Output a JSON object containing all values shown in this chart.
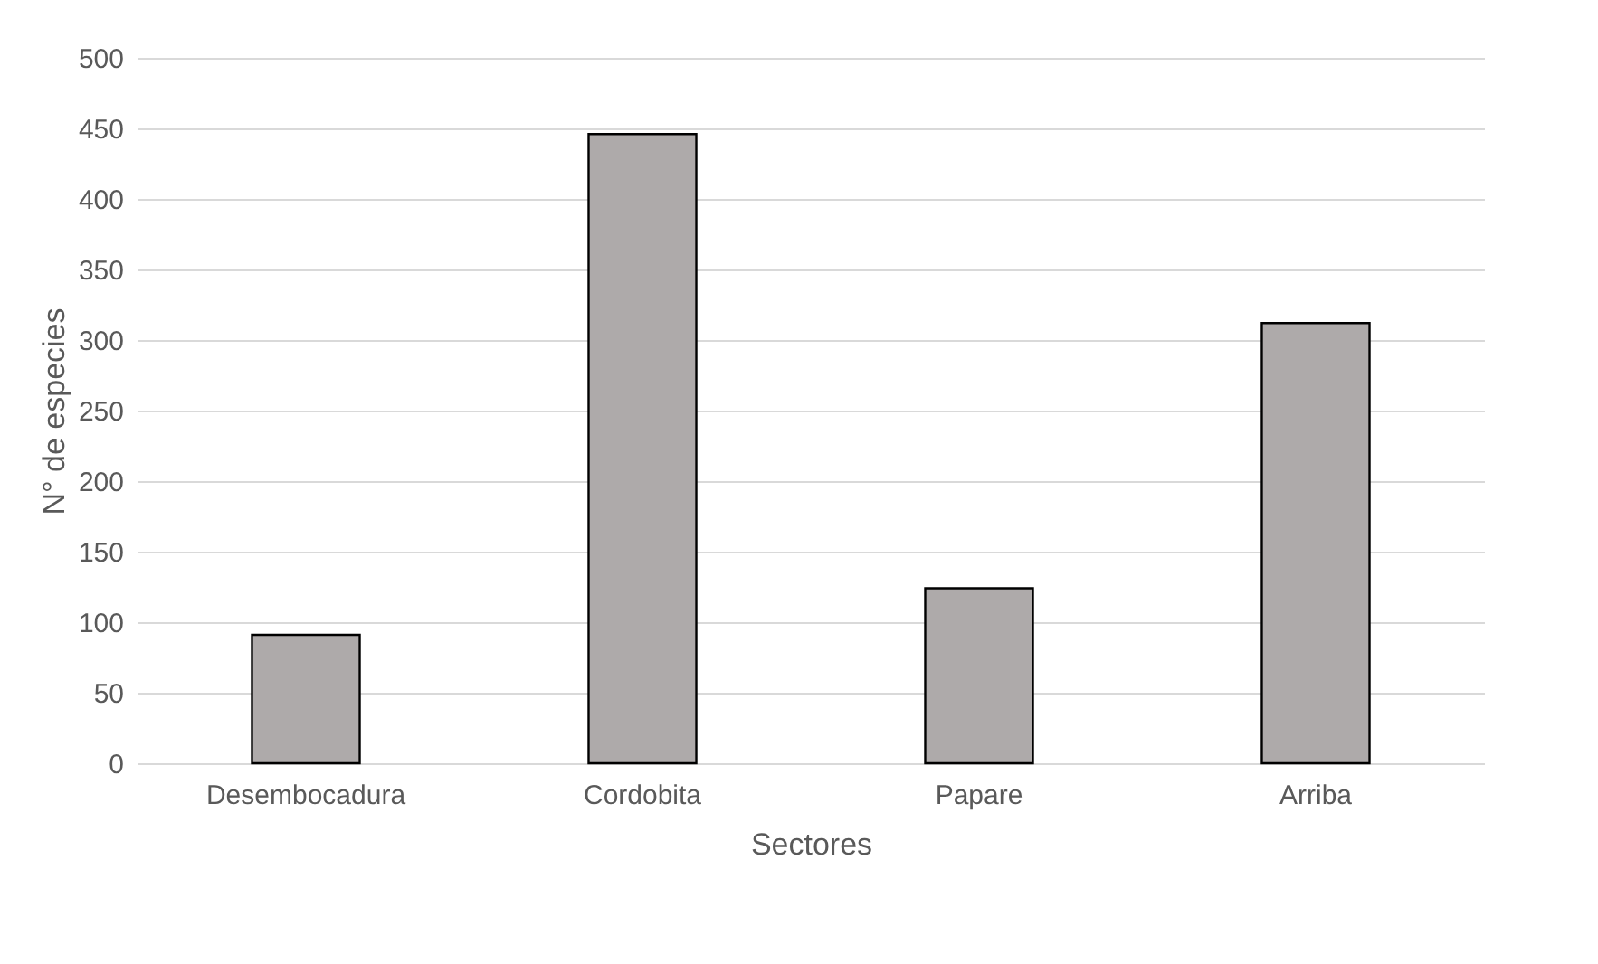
{
  "chart_data": {
    "type": "bar",
    "xlabel": "Sectores",
    "ylabel": "N° de especies",
    "categories": [
      "Desembocadura",
      "Cordobita",
      "Papare",
      "Arriba"
    ],
    "values": [
      91,
      446,
      124,
      312
    ],
    "color": "#aeaaaa",
    "ylim": [
      0,
      500
    ],
    "yticks": [
      0,
      50,
      100,
      150,
      200,
      250,
      300,
      350,
      400,
      450,
      500
    ],
    "grid": "y"
  }
}
